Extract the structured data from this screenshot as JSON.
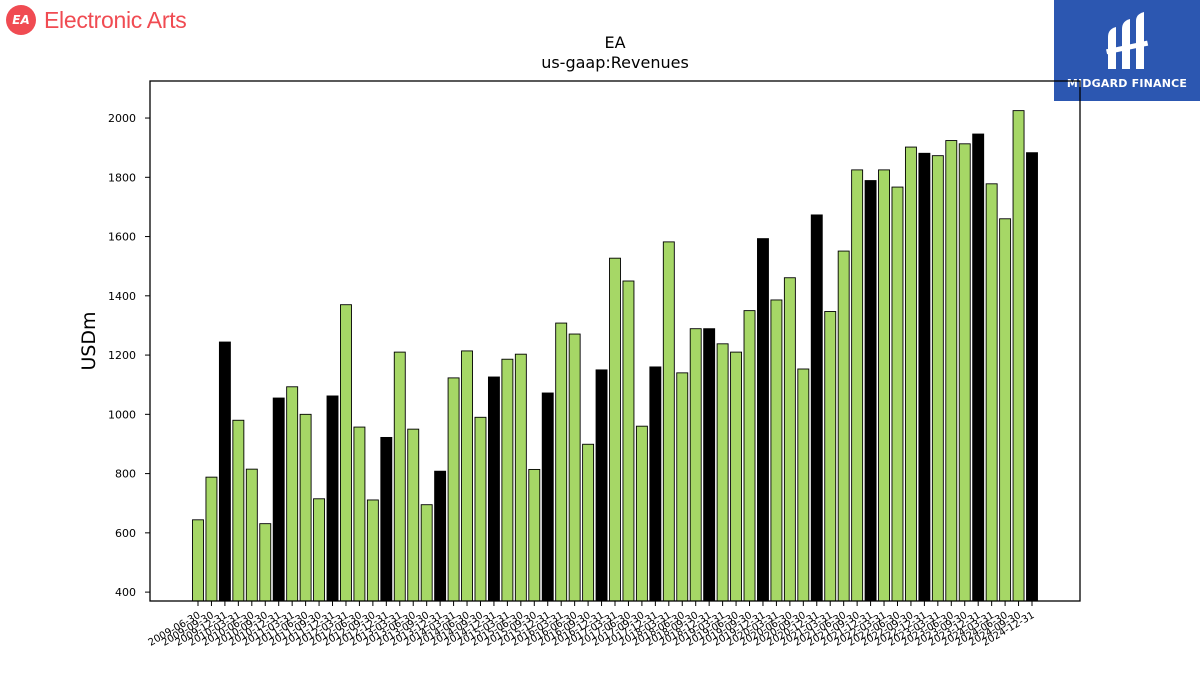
{
  "brand": {
    "name": "Electronic Arts",
    "badge_text": "EA",
    "color": "#f04b52"
  },
  "partner": {
    "name": "MIDGARD FINANCE",
    "icon": "midgard-logo-icon",
    "color": "#2c57b1"
  },
  "colors": {
    "bar_default": "#a6d766",
    "bar_q4": "#000000",
    "bar_edge": "#000000"
  },
  "chart_data": {
    "type": "bar",
    "title": "EA",
    "subtitle": "us-gaap:Revenues",
    "xlabel": "",
    "ylabel": "USDm",
    "ylim": [
      370,
      2125
    ],
    "yticks": [
      400,
      600,
      800,
      1000,
      1200,
      1400,
      1600,
      1800,
      2000
    ],
    "grid": false,
    "legend": "none",
    "tick_label_rotation": 30,
    "categories": [
      "2009-06-30",
      "2009-09-30",
      "2009-12-31",
      "2010-03-31",
      "2010-06-30",
      "2010-09-30",
      "2010-12-31",
      "2011-03-31",
      "2011-06-30",
      "2011-09-30",
      "2011-12-31",
      "2012-03-31",
      "2012-06-30",
      "2012-09-30",
      "2012-12-31",
      "2013-03-31",
      "2013-06-30",
      "2013-09-30",
      "2013-12-31",
      "2014-03-31",
      "2014-06-30",
      "2014-09-30",
      "2014-12-31",
      "2015-03-31",
      "2015-06-30",
      "2015-09-30",
      "2015-12-31",
      "2016-03-31",
      "2016-06-30",
      "2016-09-30",
      "2016-12-31",
      "2017-03-31",
      "2017-06-30",
      "2017-09-30",
      "2017-12-31",
      "2018-03-31",
      "2018-06-30",
      "2018-09-30",
      "2018-12-31",
      "2019-03-31",
      "2019-06-30",
      "2019-09-30",
      "2019-12-31",
      "2020-03-31",
      "2020-06-30",
      "2020-09-30",
      "2020-12-31",
      "2021-03-31",
      "2021-06-30",
      "2021-09-30",
      "2021-12-31",
      "2022-03-31",
      "2022-06-30",
      "2022-09-30",
      "2022-12-31",
      "2023-03-31",
      "2023-06-30",
      "2023-09-30",
      "2023-12-31",
      "2024-03-31",
      "2024-06-30",
      "2024-09-30",
      "2024-12-31"
    ],
    "values": [
      644,
      788,
      1244,
      980,
      815,
      631,
      1055,
      1093,
      1000,
      715,
      1062,
      1370,
      957,
      711,
      922,
      1210,
      950,
      695,
      808,
      1123,
      1214,
      990,
      1126,
      1186,
      1203,
      814,
      1072,
      1308,
      1271,
      899,
      1150,
      1527,
      1450,
      960,
      1160,
      1582,
      1140,
      1289,
      1289,
      1238,
      1210,
      1350,
      1593,
      1386,
      1461,
      1153,
      1673,
      1347,
      1551,
      1825,
      1789,
      1825,
      1767,
      1902,
      1881,
      1873,
      1924,
      1913,
      1946,
      1778,
      1660,
      2025,
      1883
    ],
    "bar_colors": [
      "#a6d766",
      "#a6d766",
      "#000000",
      "#a6d766",
      "#a6d766",
      "#a6d766",
      "#000000",
      "#a6d766",
      "#a6d766",
      "#a6d766",
      "#000000",
      "#a6d766",
      "#a6d766",
      "#a6d766",
      "#000000",
      "#a6d766",
      "#a6d766",
      "#a6d766",
      "#000000",
      "#a6d766",
      "#a6d766",
      "#a6d766",
      "#000000",
      "#a6d766",
      "#a6d766",
      "#a6d766",
      "#000000",
      "#a6d766",
      "#a6d766",
      "#a6d766",
      "#000000",
      "#a6d766",
      "#a6d766",
      "#a6d766",
      "#000000",
      "#a6d766",
      "#a6d766",
      "#a6d766",
      "#000000",
      "#a6d766",
      "#a6d766",
      "#a6d766",
      "#000000",
      "#a6d766",
      "#a6d766",
      "#a6d766",
      "#000000",
      "#a6d766",
      "#a6d766",
      "#a6d766",
      "#000000",
      "#a6d766",
      "#a6d766",
      "#a6d766",
      "#000000",
      "#a6d766",
      "#a6d766",
      "#a6d766",
      "#000000",
      "#a6d766",
      "#a6d766",
      "#a6d766",
      "#000000"
    ]
  }
}
